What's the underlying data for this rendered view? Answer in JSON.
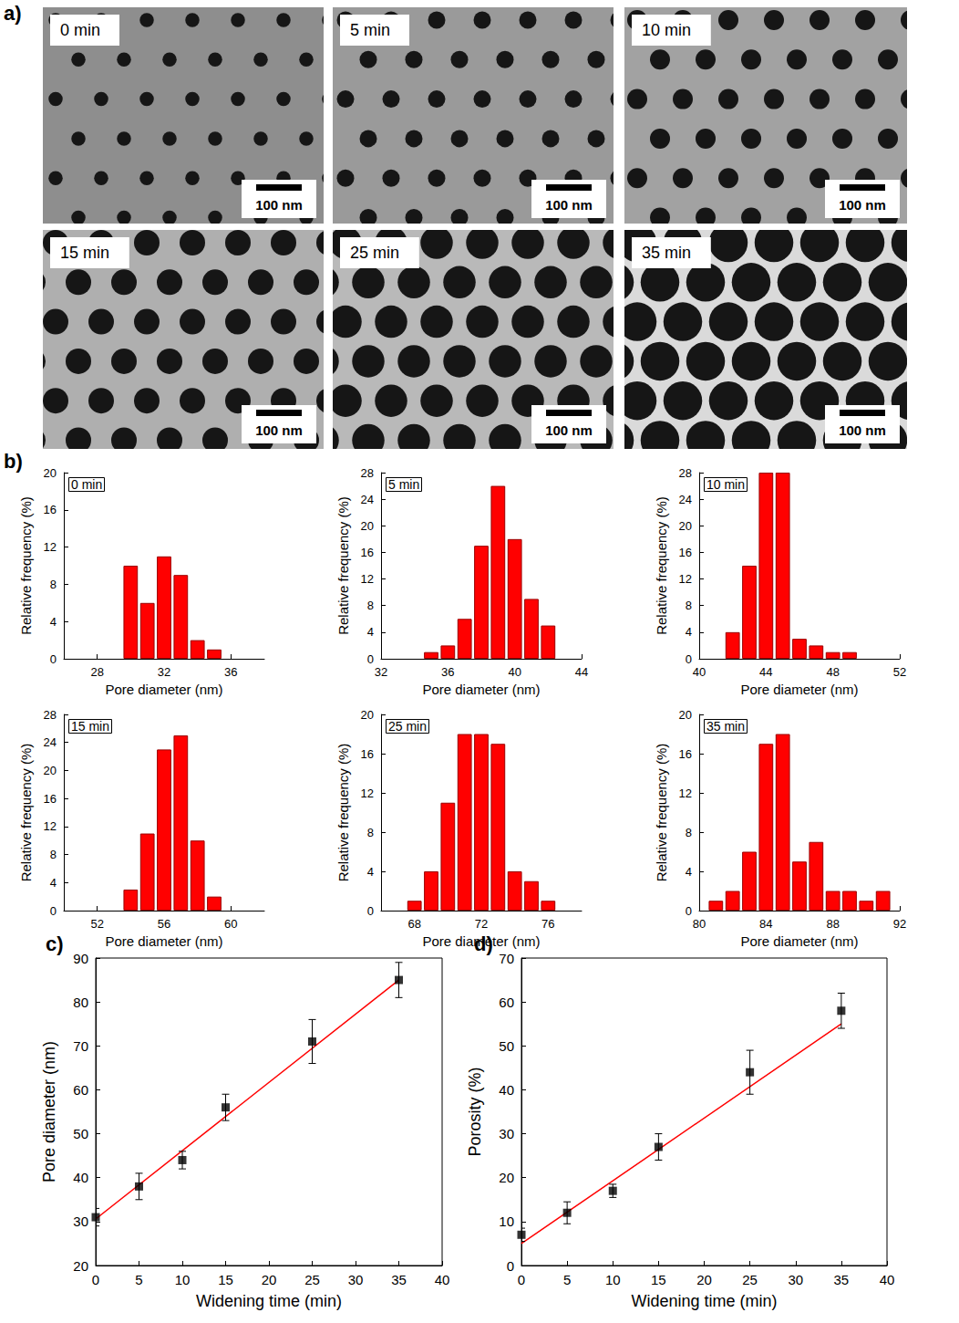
{
  "panel_labels": [
    "a)",
    "b)",
    "c)",
    "d)"
  ],
  "images": [
    {
      "label": "0 min",
      "scale_bar": "100 nm"
    },
    {
      "label": "5 min",
      "scale_bar": "100 nm"
    },
    {
      "label": "10 min",
      "scale_bar": "100 nm"
    },
    {
      "label": "15 min",
      "scale_bar": "100 nm"
    },
    {
      "label": "25 min",
      "scale_bar": "100 nm"
    },
    {
      "label": "35 min",
      "scale_bar": "100 nm"
    }
  ],
  "chart_data": [
    {
      "type": "bar",
      "annotation": "0 min",
      "xlabel": "Pore diameter (nm)",
      "ylabel": "Relative frequency (%)",
      "x": [
        30,
        31,
        32,
        33,
        34,
        35
      ],
      "values": [
        10,
        6,
        11,
        9,
        2,
        1
      ],
      "color": "#ff0000",
      "xlim": [
        26,
        38
      ],
      "xticks": [
        28,
        32,
        36
      ],
      "ylim": [
        0,
        20
      ],
      "yticks": [
        0,
        4,
        8,
        12,
        16,
        20
      ],
      "grid": false
    },
    {
      "type": "bar",
      "annotation": "5 min",
      "xlabel": "Pore diameter (nm)",
      "ylabel": "Relative frequency (%)",
      "x": [
        35,
        36,
        37,
        38,
        39,
        40,
        41,
        42
      ],
      "values": [
        1,
        2,
        6,
        17,
        26,
        18,
        9,
        5
      ],
      "color": "#ff0000",
      "xlim": [
        32,
        44
      ],
      "xticks": [
        32,
        36,
        40,
        44
      ],
      "ylim": [
        0,
        28
      ],
      "yticks": [
        0,
        4,
        8,
        12,
        16,
        20,
        24,
        28
      ],
      "grid": false
    },
    {
      "type": "bar",
      "annotation": "10 min",
      "xlabel": "Pore diameter (nm)",
      "ylabel": "Relative frequency (%)",
      "x": [
        42,
        43,
        44,
        45,
        46,
        47,
        48,
        49
      ],
      "values": [
        4,
        14,
        28,
        28,
        3,
        2,
        1,
        1
      ],
      "color": "#ff0000",
      "xlim": [
        40,
        52
      ],
      "xticks": [
        40,
        44,
        48,
        52
      ],
      "ylim": [
        0,
        28
      ],
      "yticks": [
        0,
        4,
        8,
        12,
        16,
        20,
        24,
        28
      ],
      "grid": false
    },
    {
      "type": "bar",
      "annotation": "15 min",
      "xlabel": "Pore diameter (nm)",
      "ylabel": "Relative frequency (%)",
      "x": [
        54,
        55,
        56,
        57,
        58,
        59
      ],
      "values": [
        3,
        11,
        23,
        25,
        10,
        2
      ],
      "color": "#ff0000",
      "xlim": [
        50,
        62
      ],
      "xticks": [
        52,
        56,
        60
      ],
      "ylim": [
        0,
        28
      ],
      "yticks": [
        0,
        4,
        8,
        12,
        16,
        20,
        24,
        28
      ],
      "grid": false
    },
    {
      "type": "bar",
      "annotation": "25 min",
      "xlabel": "Pore diameter (nm)",
      "ylabel": "Relative frequency (%)",
      "x": [
        68,
        69,
        70,
        71,
        72,
        73,
        74,
        75,
        76
      ],
      "values": [
        1,
        4,
        11,
        18,
        18,
        17,
        4,
        3,
        1
      ],
      "color": "#ff0000",
      "xlim": [
        66,
        78
      ],
      "xticks": [
        68,
        72,
        76
      ],
      "ylim": [
        0,
        20
      ],
      "yticks": [
        0,
        4,
        8,
        12,
        16,
        20
      ],
      "grid": false
    },
    {
      "type": "bar",
      "annotation": "35 min",
      "xlabel": "Pore diameter (nm)",
      "ylabel": "Relative frequency (%)",
      "x": [
        81,
        82,
        83,
        84,
        85,
        86,
        87,
        88,
        89,
        90,
        91
      ],
      "values": [
        1,
        2,
        6,
        17,
        18,
        5,
        7,
        2,
        2,
        1,
        2
      ],
      "color": "#ff0000",
      "xlim": [
        80,
        92
      ],
      "xticks": [
        80,
        84,
        88,
        92
      ],
      "ylim": [
        0,
        20
      ],
      "yticks": [
        0,
        4,
        8,
        12,
        16,
        20
      ],
      "grid": false
    },
    {
      "type": "scatter",
      "xlabel": "Widening time (min)",
      "ylabel": "Pore diameter (nm)",
      "xlim": [
        0,
        40
      ],
      "xticks": [
        0,
        5,
        10,
        15,
        20,
        25,
        30,
        35,
        40
      ],
      "ylim": [
        20,
        90
      ],
      "yticks": [
        20,
        30,
        40,
        50,
        60,
        70,
        80,
        90
      ],
      "grid": false,
      "series": [
        {
          "type": "scatter",
          "x": [
            0,
            5,
            10,
            15,
            25,
            35
          ],
          "values": [
            31,
            38,
            44,
            56,
            71,
            85
          ],
          "errors": [
            2,
            3,
            2,
            3,
            5,
            4
          ],
          "color": "#000000",
          "marker": "square"
        },
        {
          "type": "line",
          "x": [
            0,
            35
          ],
          "values": [
            30.6,
            85
          ],
          "color": "#ff0000",
          "line_style": "solid"
        }
      ]
    },
    {
      "type": "scatter",
      "xlabel": "Widening time (min)",
      "ylabel": "Porosity (%)",
      "xlim": [
        0,
        40
      ],
      "xticks": [
        0,
        5,
        10,
        15,
        20,
        25,
        30,
        35,
        40
      ],
      "ylim": [
        0,
        70
      ],
      "yticks": [
        0,
        10,
        20,
        30,
        40,
        50,
        60,
        70
      ],
      "grid": false,
      "series": [
        {
          "type": "scatter",
          "x": [
            0,
            5,
            10,
            15,
            25,
            35
          ],
          "values": [
            7,
            12,
            17,
            27,
            44,
            58
          ],
          "errors": [
            1.5,
            2.5,
            1.5,
            3,
            5,
            4
          ],
          "color": "#000000",
          "marker": "square"
        },
        {
          "type": "line",
          "x": [
            0,
            35
          ],
          "values": [
            5,
            55
          ],
          "color": "#ff0000",
          "line_style": "solid"
        }
      ]
    }
  ]
}
